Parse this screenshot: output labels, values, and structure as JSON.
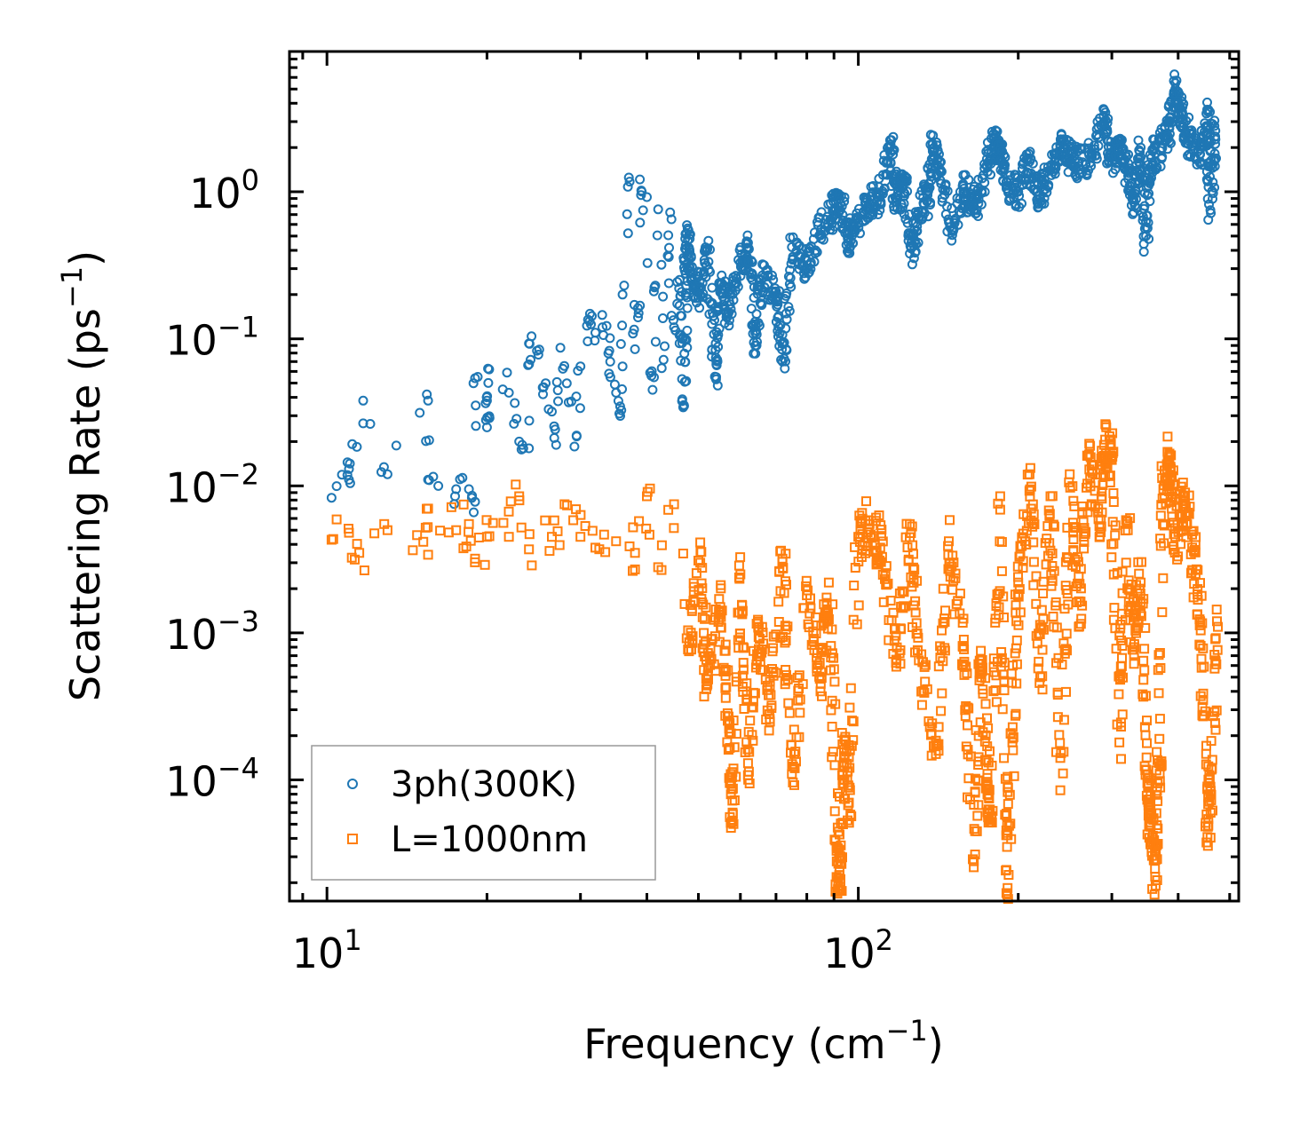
{
  "chart_data": {
    "type": "scatter",
    "xscale": "log",
    "yscale": "log",
    "xlim": [
      8.5,
      520
    ],
    "ylim": [
      1.5e-05,
      9
    ],
    "xlabel": {
      "text": "Frequency (cm",
      "sup": "−1",
      "close": ")"
    },
    "ylabel": {
      "text": "Scattering Rate (ps",
      "sup": "−1",
      "close": ")"
    },
    "x_ticks": [
      {
        "value": 10,
        "base": "10",
        "exp": "1"
      },
      {
        "value": 100,
        "base": "10",
        "exp": "2"
      }
    ],
    "y_ticks": [
      {
        "value": 1,
        "base": "10",
        "exp": "0"
      },
      {
        "value": 0.1,
        "base": "10",
        "exp": "−1"
      },
      {
        "value": 0.01,
        "base": "10",
        "exp": "−2"
      },
      {
        "value": 0.001,
        "base": "10",
        "exp": "−3"
      },
      {
        "value": 0.0001,
        "base": "10",
        "exp": "−4"
      }
    ],
    "legend_position": "lower-left",
    "series": [
      {
        "name": "3ph(300K)",
        "marker": "circle",
        "color": "#1f77b4",
        "sample_points": [
          [
            10.2,
            0.0083
          ],
          [
            11.0,
            0.013
          ],
          [
            11.0,
            0.011
          ],
          [
            11.7,
            0.038
          ],
          [
            13.0,
            0.012
          ],
          [
            15.5,
            0.038
          ],
          [
            15.5,
            0.011
          ],
          [
            17.5,
            0.0095
          ],
          [
            18.5,
            0.0095
          ],
          [
            19.0,
            0.0078
          ],
          [
            19.0,
            0.054
          ],
          [
            20.0,
            0.038
          ],
          [
            20.0,
            0.025
          ],
          [
            20.2,
            0.062
          ],
          [
            22.0,
            0.043
          ],
          [
            23.0,
            0.02
          ],
          [
            24.0,
            0.018
          ],
          [
            24.0,
            0.093
          ],
          [
            25.0,
            0.078
          ],
          [
            25.5,
            0.042
          ],
          [
            26.5,
            0.032
          ],
          [
            27.0,
            0.019
          ],
          [
            27.5,
            0.087
          ],
          [
            28.5,
            0.037
          ],
          [
            29.5,
            0.022
          ],
          [
            30.0,
            0.065
          ],
          [
            31.0,
            0.135
          ],
          [
            32.0,
            0.11
          ],
          [
            33.0,
            0.12
          ],
          [
            34.0,
            0.083
          ],
          [
            35.0,
            0.043
          ],
          [
            35.5,
            0.031
          ],
          [
            36.0,
            0.065
          ],
          [
            36.0,
            0.2
          ],
          [
            37.0,
            1.25
          ],
          [
            38.0,
            0.085
          ],
          [
            38.5,
            0.14
          ],
          [
            39.0,
            0.95
          ],
          [
            40.0,
            0.92
          ],
          [
            41.0,
            0.045
          ],
          [
            41.5,
            0.23
          ],
          [
            42.0,
            0.76
          ],
          [
            43.0,
            0.072
          ],
          [
            44.0,
            0.36
          ],
          [
            44.5,
            0.65
          ],
          [
            45.0,
            0.12
          ],
          [
            46.0,
            0.22
          ],
          [
            47.0,
            0.035
          ],
          [
            47.5,
            0.52
          ],
          [
            48.0,
            0.31
          ],
          [
            50.0,
            0.19
          ],
          [
            52.0,
            0.41
          ],
          [
            54.0,
            0.055
          ],
          [
            55.0,
            0.24
          ],
          [
            57.0,
            0.15
          ],
          [
            60.0,
            0.33
          ],
          [
            62.0,
            0.45
          ],
          [
            64.0,
            0.09
          ],
          [
            66.0,
            0.27
          ],
          [
            70.0,
            0.21
          ],
          [
            72.0,
            0.07
          ],
          [
            75.0,
            0.42
          ],
          [
            80.0,
            0.3
          ],
          [
            85.0,
            0.55
          ],
          [
            90.0,
            0.75
          ],
          [
            92.0,
            0.95
          ],
          [
            96.0,
            0.48
          ],
          [
            100.0,
            0.62
          ],
          [
            105.0,
            0.82
          ],
          [
            110.0,
            0.95
          ],
          [
            115.0,
            2.1
          ],
          [
            118.0,
            0.85
          ],
          [
            122.0,
            1.2
          ],
          [
            125.0,
            0.38
          ],
          [
            130.0,
            0.65
          ],
          [
            135.0,
            0.95
          ],
          [
            138.0,
            2.1
          ],
          [
            142.0,
            1.4
          ],
          [
            150.0,
            0.55
          ],
          [
            158.0,
            1.05
          ],
          [
            165.0,
            0.75
          ],
          [
            172.0,
            1.3
          ],
          [
            180.0,
            2.3
          ],
          [
            185.0,
            1.9
          ],
          [
            190.0,
            1.1
          ],
          [
            200.0,
            1.0
          ],
          [
            210.0,
            1.6
          ],
          [
            220.0,
            0.9
          ],
          [
            230.0,
            1.4
          ],
          [
            240.0,
            2.0
          ],
          [
            250.0,
            1.7
          ],
          [
            260.0,
            1.5
          ],
          [
            275.0,
            1.8
          ],
          [
            290.0,
            3.0
          ],
          [
            300.0,
            1.6
          ],
          [
            310.0,
            2.2
          ],
          [
            320.0,
            1.4
          ],
          [
            330.0,
            0.85
          ],
          [
            340.0,
            2.0
          ],
          [
            348.0,
            0.5
          ],
          [
            356.0,
            1.7
          ],
          [
            370.0,
            1.9
          ],
          [
            385.0,
            2.7
          ],
          [
            395.0,
            5.0
          ],
          [
            405.0,
            3.4
          ],
          [
            420.0,
            2.2
          ],
          [
            440.0,
            1.8
          ],
          [
            455.0,
            3.5
          ],
          [
            460.0,
            0.75
          ],
          [
            470.0,
            2.6
          ]
        ]
      },
      {
        "name": "L=1000nm",
        "marker": "square",
        "color": "#ff7f0e",
        "sample_points": [
          [
            10.2,
            0.0043
          ],
          [
            11.0,
            0.0048
          ],
          [
            11.5,
            0.0035
          ],
          [
            13.0,
            0.005
          ],
          [
            15.5,
            0.0034
          ],
          [
            15.5,
            0.007
          ],
          [
            17.5,
            0.005
          ],
          [
            18.5,
            0.0055
          ],
          [
            19.0,
            0.0032
          ],
          [
            20.0,
            0.0045
          ],
          [
            22.0,
            0.0045
          ],
          [
            23.0,
            0.0085
          ],
          [
            24.0,
            0.0037
          ],
          [
            26.5,
            0.0045
          ],
          [
            28.0,
            0.0075
          ],
          [
            30.0,
            0.0045
          ],
          [
            32.0,
            0.0038
          ],
          [
            35.0,
            0.0042
          ],
          [
            38.0,
            0.0035
          ],
          [
            40.0,
            0.0085
          ],
          [
            42.0,
            0.0028
          ],
          [
            45.0,
            0.0075
          ],
          [
            48.0,
            0.00075
          ],
          [
            50.0,
            0.0031
          ],
          [
            52.0,
            0.00045
          ],
          [
            55.0,
            0.0015
          ],
          [
            57.0,
            0.00027
          ],
          [
            58.0,
            6e-05
          ],
          [
            60.0,
            0.0025
          ],
          [
            62.0,
            0.00013
          ],
          [
            65.0,
            0.0011
          ],
          [
            68.0,
            0.00028
          ],
          [
            72.0,
            0.0032
          ],
          [
            75.0,
            0.00011
          ],
          [
            80.0,
            0.0018
          ],
          [
            85.0,
            0.00045
          ],
          [
            88.0,
            0.0022
          ],
          [
            91.0,
            3.3e-05
          ],
          [
            92.0,
            1.8e-05
          ],
          [
            94.0,
            0.00016
          ],
          [
            96.0,
            7e-05
          ],
          [
            100.0,
            0.0045
          ],
          [
            105.0,
            0.0055
          ],
          [
            110.0,
            0.0038
          ],
          [
            118.0,
            0.00065
          ],
          [
            125.0,
            0.0055
          ],
          [
            130.0,
            0.00065
          ],
          [
            140.0,
            0.00015
          ],
          [
            148.0,
            0.0042
          ],
          [
            158.0,
            0.0009
          ],
          [
            165.0,
            2.8e-05
          ],
          [
            170.0,
            0.00065
          ],
          [
            175.0,
            0.00011
          ],
          [
            178.0,
            5.5e-05
          ],
          [
            185.0,
            0.0085
          ],
          [
            190.0,
            1.7e-05
          ],
          [
            195.0,
            0.00018
          ],
          [
            200.0,
            0.0022
          ],
          [
            210.0,
            0.012
          ],
          [
            220.0,
            0.0005
          ],
          [
            230.0,
            0.0085
          ],
          [
            240.0,
            8.5e-05
          ],
          [
            250.0,
            0.012
          ],
          [
            260.0,
            0.0011
          ],
          [
            270.0,
            0.016
          ],
          [
            285.0,
            0.0045
          ],
          [
            290.0,
            0.019
          ],
          [
            300.0,
            0.015
          ],
          [
            310.0,
            0.00018
          ],
          [
            320.0,
            0.0055
          ],
          [
            330.0,
            0.0008
          ],
          [
            340.0,
            0.0022
          ],
          [
            350.0,
            9.5e-05
          ],
          [
            355.0,
            4.8e-05
          ],
          [
            362.0,
            2.2e-05
          ],
          [
            368.0,
            0.00013
          ],
          [
            375.0,
            0.0095
          ],
          [
            385.0,
            0.015
          ],
          [
            395.0,
            0.0045
          ],
          [
            410.0,
            0.0085
          ],
          [
            425.0,
            0.0038
          ],
          [
            440.0,
            0.0012
          ],
          [
            455.0,
            4.8e-05
          ],
          [
            460.0,
            9e-05
          ],
          [
            475.0,
            0.0011
          ]
        ]
      }
    ]
  }
}
